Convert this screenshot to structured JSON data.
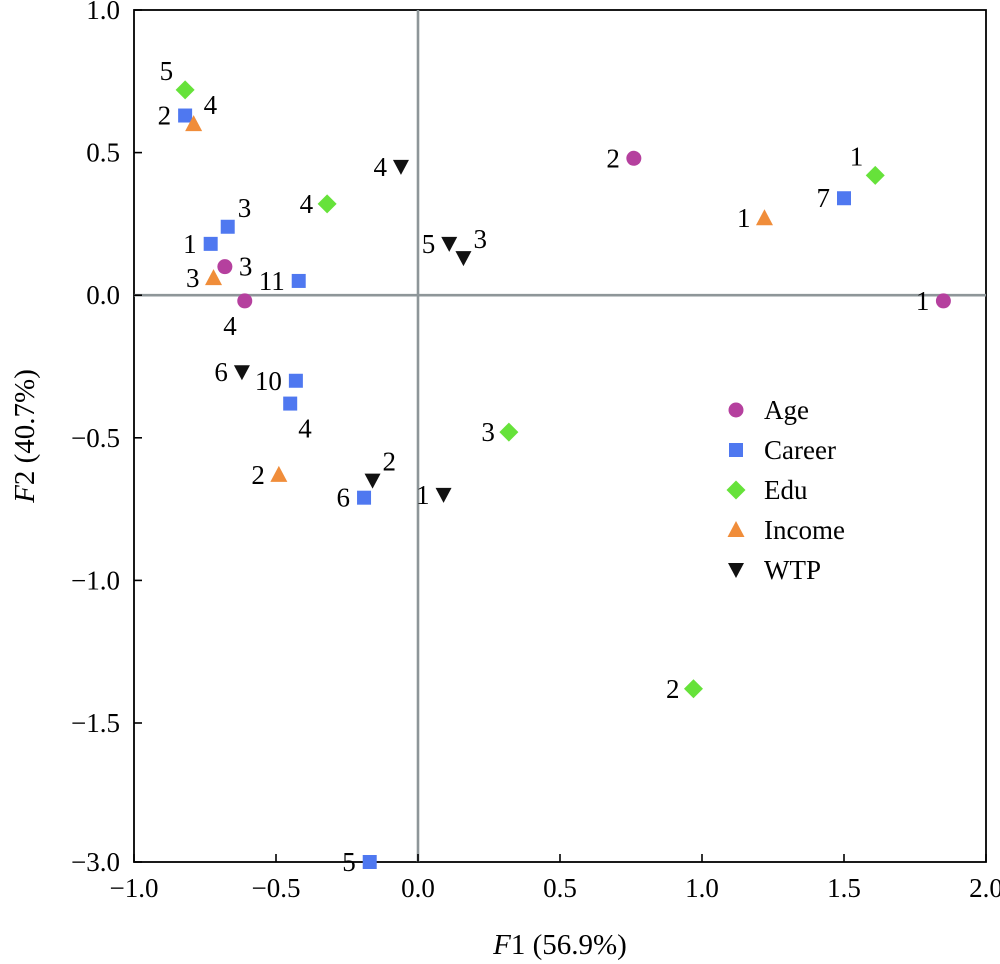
{
  "chart_data": {
    "type": "scatter",
    "xlabel": {
      "var": "F",
      "idx": "1",
      "rest": " (56.9%)"
    },
    "ylabel": {
      "var": "F",
      "idx": "2",
      "rest": " (40.7%)"
    },
    "xlim": [
      -1.0,
      2.0
    ],
    "ylim_broken": {
      "display_bottom": -3.0,
      "top": 1.0,
      "break_after": -1.5
    },
    "x_ticks": [
      {
        "v": -1.0,
        "label": "−1.0"
      },
      {
        "v": -0.5,
        "label": "−0.5"
      },
      {
        "v": 0.0,
        "label": "0.0"
      },
      {
        "v": 0.5,
        "label": "0.5"
      },
      {
        "v": 1.0,
        "label": "1.0"
      },
      {
        "v": 1.5,
        "label": "1.5"
      },
      {
        "v": 2.0,
        "label": "2.0"
      }
    ],
    "y_ticks": [
      {
        "v": 1.0,
        "label": "1.0"
      },
      {
        "v": 0.5,
        "label": "0.5"
      },
      {
        "v": 0.0,
        "label": "0.0"
      },
      {
        "v": -0.5,
        "label": "−0.5"
      },
      {
        "v": -1.0,
        "label": "−1.0"
      },
      {
        "v": -1.5,
        "label": "−1.5"
      },
      {
        "v": -3.0,
        "label": "−3.0"
      }
    ],
    "legend_position": "right-middle",
    "series": [
      {
        "name": "Age",
        "marker": "circle",
        "color": "#b5409e",
        "points": [
          {
            "x": 1.85,
            "y": -0.02,
            "label": "1",
            "anchor": "left"
          },
          {
            "x": 0.76,
            "y": 0.48,
            "label": "2",
            "anchor": "left"
          },
          {
            "x": -0.68,
            "y": 0.1,
            "label": "3",
            "anchor": "right"
          },
          {
            "x": -0.61,
            "y": -0.02,
            "label": "4",
            "anchor": "below-left"
          }
        ]
      },
      {
        "name": "Career",
        "marker": "square",
        "color": "#4f78f0",
        "points": [
          {
            "x": -0.73,
            "y": 0.18,
            "label": "1",
            "anchor": "left"
          },
          {
            "x": -0.82,
            "y": 0.63,
            "label": "2",
            "anchor": "left"
          },
          {
            "x": -0.67,
            "y": 0.24,
            "label": "3",
            "anchor": "above-right"
          },
          {
            "x": -0.45,
            "y": -0.38,
            "label": "4",
            "anchor": "below-right"
          },
          {
            "x": -0.17,
            "y": -1.57,
            "label": "5",
            "anchor": "left"
          },
          {
            "x": -0.19,
            "y": -0.71,
            "label": "6",
            "anchor": "left"
          },
          {
            "x": 1.5,
            "y": 0.34,
            "label": "7",
            "anchor": "left"
          },
          {
            "x": -0.43,
            "y": -0.3,
            "label": "10",
            "anchor": "left"
          },
          {
            "x": -0.42,
            "y": 0.05,
            "label": "11",
            "anchor": "left"
          }
        ]
      },
      {
        "name": "Edu",
        "marker": "diamond",
        "color": "#66e23a",
        "points": [
          {
            "x": 1.61,
            "y": 0.42,
            "label": "1",
            "anchor": "above-left"
          },
          {
            "x": 0.97,
            "y": -1.38,
            "label": "2",
            "anchor": "left"
          },
          {
            "x": 0.32,
            "y": -0.48,
            "label": "3",
            "anchor": "left"
          },
          {
            "x": -0.32,
            "y": 0.32,
            "label": "4",
            "anchor": "left"
          },
          {
            "x": -0.82,
            "y": 0.72,
            "label": "5",
            "anchor": "above-left"
          }
        ]
      },
      {
        "name": "Income",
        "marker": "triangle-up",
        "color": "#f08d3a",
        "points": [
          {
            "x": 1.22,
            "y": 0.27,
            "label": "1",
            "anchor": "left"
          },
          {
            "x": -0.49,
            "y": -0.63,
            "label": "2",
            "anchor": "left"
          },
          {
            "x": -0.72,
            "y": 0.06,
            "label": "3",
            "anchor": "left"
          },
          {
            "x": -0.79,
            "y": 0.6,
            "label": "4",
            "anchor": "above-right"
          }
        ]
      },
      {
        "name": "WTP",
        "marker": "triangle-down",
        "color": "#111111",
        "points": [
          {
            "x": 0.09,
            "y": -0.7,
            "label": "1",
            "anchor": "left"
          },
          {
            "x": -0.16,
            "y": -0.65,
            "label": "2",
            "anchor": "above-right"
          },
          {
            "x": 0.16,
            "y": 0.13,
            "label": "3",
            "anchor": "above-right"
          },
          {
            "x": -0.06,
            "y": 0.45,
            "label": "4",
            "anchor": "left"
          },
          {
            "x": 0.11,
            "y": 0.18,
            "label": "5",
            "anchor": "left"
          },
          {
            "x": -0.62,
            "y": -0.27,
            "label": "6",
            "anchor": "left"
          }
        ]
      }
    ]
  }
}
